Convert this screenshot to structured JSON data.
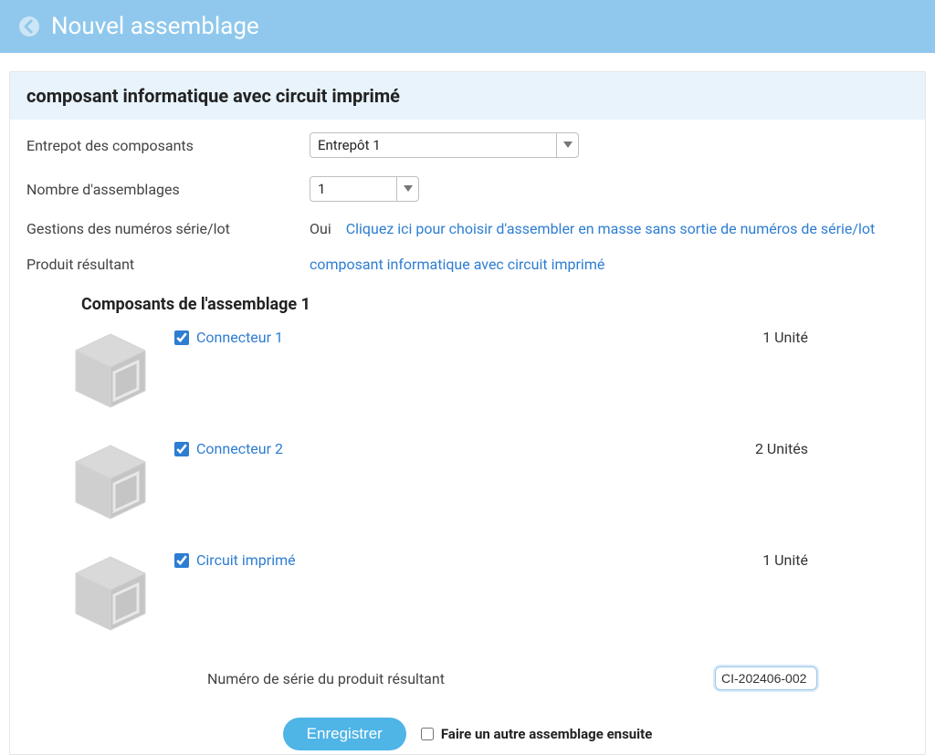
{
  "header": {
    "title": "Nouvel assemblage"
  },
  "section_title": "composant informatique avec circuit imprimé",
  "fields": {
    "warehouse": {
      "label": "Entrepot des composants",
      "value": "Entrepôt 1"
    },
    "count": {
      "label": "Nombre d'assemblages",
      "value": "1"
    },
    "serial": {
      "label": "Gestions des numéros série/lot",
      "prefix": "Oui",
      "link": "Cliquez ici pour choisir d'assembler en masse sans sortie de numéros de série/lot"
    },
    "result": {
      "label": "Produit résultant",
      "link": "composant informatique avec circuit imprimé"
    }
  },
  "components_title": "Composants de l'assemblage 1",
  "components": [
    {
      "name": "Connecteur 1",
      "checked": true,
      "qty": "1 Unité"
    },
    {
      "name": "Connecteur 2",
      "checked": true,
      "qty": "2 Unités"
    },
    {
      "name": "Circuit imprimé",
      "checked": true,
      "qty": "1 Unité"
    }
  ],
  "result_serial": {
    "label": "Numéro de série du produit résultant",
    "value": "CI-202406-002"
  },
  "footer": {
    "save_label": "Enregistrer",
    "follow_label": "Faire un autre assemblage ensuite",
    "follow_checked": false
  },
  "colors": {
    "header_bg": "#8fc8ec",
    "section_bg": "#e8f3fb",
    "link": "#2d7dd2",
    "button_bg": "#4fb4e6",
    "icon_gray": "#cfcfcf",
    "text": "#444444"
  }
}
